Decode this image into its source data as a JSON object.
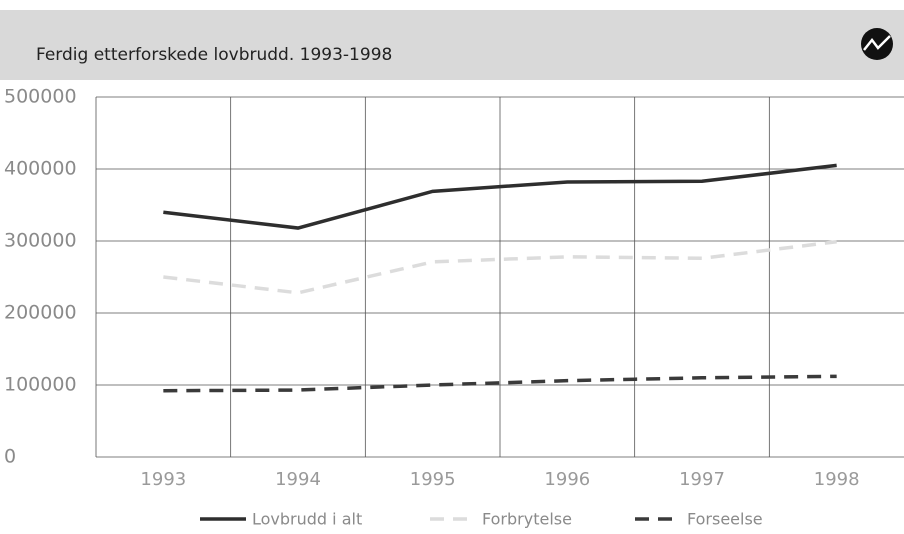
{
  "chart_data": {
    "type": "line",
    "title": "Ferdig etterforskede lovbrudd. 1993-1998",
    "categories": [
      "1993",
      "1994",
      "1995",
      "1996",
      "1997",
      "1998"
    ],
    "series": [
      {
        "name": "Lovbrudd i alt",
        "color": "#2e2e2e",
        "dash": false,
        "values": [
          340000,
          318000,
          369000,
          382000,
          383000,
          405000
        ]
      },
      {
        "name": "Forbrytelse",
        "color": "#dcdcdc",
        "dash": true,
        "values": [
          250000,
          228000,
          271000,
          278000,
          276000,
          299000
        ]
      },
      {
        "name": "Forseelse",
        "color": "#3a3a3a",
        "dash": true,
        "values": [
          92000,
          93000,
          100000,
          106000,
          110000,
          112000
        ]
      }
    ],
    "ylim": [
      0,
      500000
    ],
    "yticks": [
      0,
      100000,
      200000,
      300000,
      400000,
      500000
    ],
    "grid": true,
    "legend": "bottom"
  }
}
